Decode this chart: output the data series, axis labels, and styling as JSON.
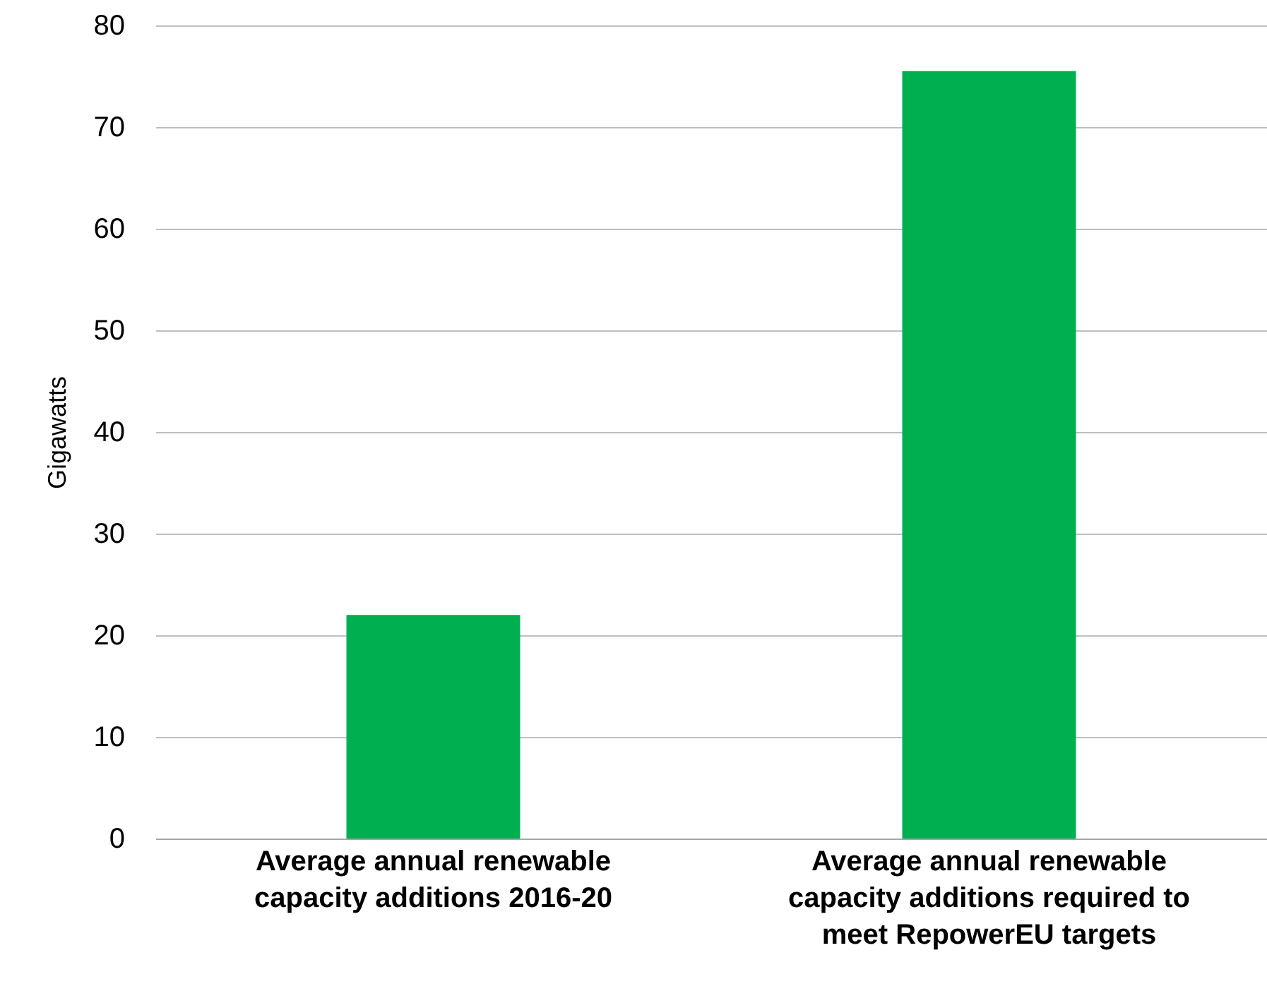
{
  "chart_data": {
    "type": "bar",
    "ylabel": "Gigawatts",
    "categories": [
      "Average annual renewable capacity additions 2016-20",
      "Average annual renewable capacity additions required to meet RepowerEU targets"
    ],
    "values": [
      22,
      75.5
    ],
    "color": "#00b050",
    "ylim": [
      0,
      80
    ],
    "yticks": [
      0,
      10,
      20,
      30,
      40,
      50,
      60,
      70,
      80
    ],
    "grid": "y"
  }
}
